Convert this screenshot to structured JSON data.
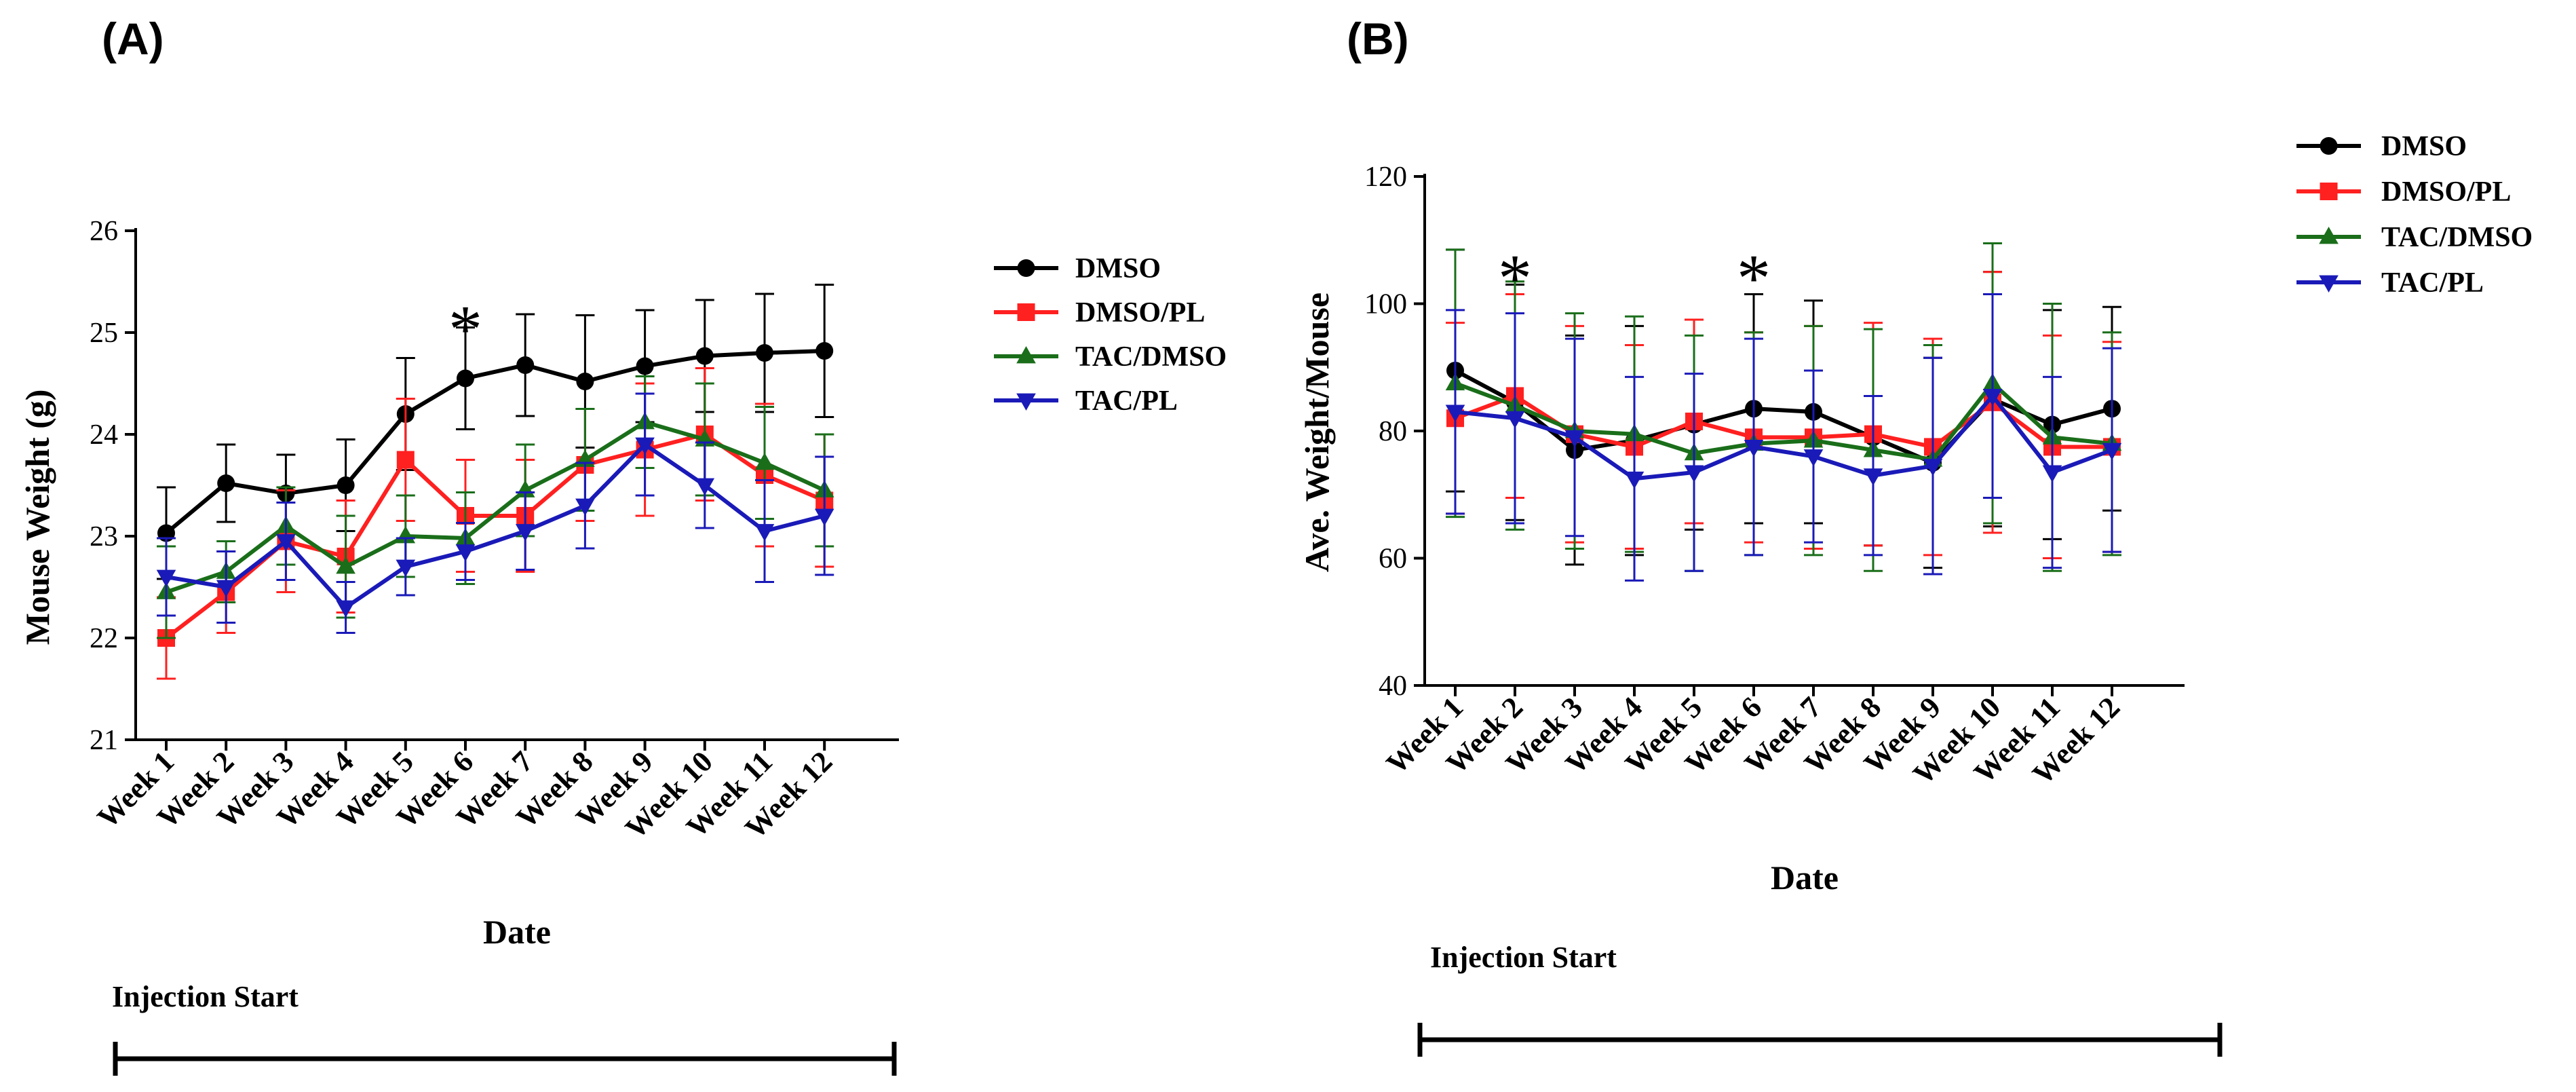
{
  "chart_data": [
    {
      "panel_label": "(A)",
      "type": "line",
      "xlabel": "Date",
      "ylabel": "Mouse Weight (g)",
      "ylim": [
        21,
        26
      ],
      "yticks": [
        "21",
        "22",
        "23",
        "24",
        "25",
        "26"
      ],
      "categories": [
        "Week 1",
        "Week 2",
        "Week 3",
        "Week 4",
        "Week 5",
        "Week 6",
        "Week 7",
        "Week 8",
        "Week 9",
        "Week 10",
        "Week 11",
        "Week 12"
      ],
      "series": [
        {
          "name": "DMSO",
          "color": "#000000",
          "marker": "circle",
          "values": [
            23.03,
            23.52,
            23.42,
            23.5,
            24.2,
            24.55,
            24.68,
            24.52,
            24.67,
            24.77,
            24.8,
            24.82
          ],
          "errors": [
            0.45,
            0.38,
            0.38,
            0.45,
            0.55,
            0.5,
            0.5,
            0.65,
            0.55,
            0.55,
            0.58,
            0.65
          ]
        },
        {
          "name": "DMSO/PL",
          "color": "#ff2020",
          "marker": "square",
          "values": [
            22.0,
            22.45,
            22.95,
            22.8,
            23.75,
            23.2,
            23.2,
            23.7,
            23.85,
            24.0,
            23.6,
            23.35
          ],
          "errors": [
            0.4,
            0.4,
            0.5,
            0.55,
            0.6,
            0.55,
            0.55,
            0.55,
            0.65,
            0.65,
            0.7,
            0.65
          ]
        },
        {
          "name": "TAC/DMSO",
          "color": "#1a6e1a",
          "marker": "triangle-up",
          "values": [
            22.45,
            22.65,
            23.1,
            22.7,
            23.0,
            22.98,
            23.45,
            23.75,
            24.12,
            23.95,
            23.72,
            23.45
          ],
          "errors": [
            0.45,
            0.3,
            0.38,
            0.5,
            0.4,
            0.45,
            0.45,
            0.5,
            0.45,
            0.55,
            0.55,
            0.55
          ]
        },
        {
          "name": "TAC/PL",
          "color": "#1a1ab8",
          "marker": "triangle-down",
          "values": [
            22.6,
            22.5,
            22.95,
            22.3,
            22.7,
            22.85,
            23.05,
            23.3,
            23.9,
            23.5,
            23.05,
            23.2
          ],
          "errors": [
            0.38,
            0.35,
            0.38,
            0.25,
            0.28,
            0.28,
            0.38,
            0.42,
            0.5,
            0.42,
            0.5,
            0.58
          ]
        }
      ],
      "annotations": [
        {
          "text": "*",
          "category": "Week 6"
        }
      ],
      "injection_label": "Injection Start"
    },
    {
      "panel_label": "(B)",
      "type": "line",
      "xlabel": "Date",
      "ylabel": "Ave. Weight/Mouse",
      "ylim": [
        40,
        120
      ],
      "yticks": [
        "40",
        "60",
        "80",
        "100",
        "120"
      ],
      "categories": [
        "Week 1",
        "Week 2",
        "Week 3",
        "Week 4",
        "Week 5",
        "Week 6",
        "Week 7",
        "Week 8",
        "Week 9",
        "Week 10",
        "Week 11",
        "Week 12"
      ],
      "series": [
        {
          "name": "DMSO",
          "color": "#000000",
          "marker": "circle",
          "values": [
            89.5,
            84.5,
            77.0,
            78.5,
            81.0,
            83.5,
            83.0,
            79.0,
            75.0,
            85.0,
            81.0,
            83.5
          ],
          "errors": [
            19.0,
            18.5,
            18.0,
            18.0,
            16.5,
            18.0,
            17.5,
            17.0,
            16.5,
            20.0,
            18.0,
            16.0
          ]
        },
        {
          "name": "DMSO/PL",
          "color": "#ff2020",
          "marker": "square",
          "values": [
            82.0,
            85.5,
            79.5,
            77.5,
            81.5,
            79.0,
            79.0,
            79.5,
            77.5,
            84.5,
            77.5,
            77.5
          ],
          "errors": [
            15.0,
            16.0,
            17.0,
            16.0,
            16.0,
            16.5,
            17.5,
            17.5,
            17.0,
            20.5,
            17.5,
            16.5
          ]
        },
        {
          "name": "TAC/DMSO",
          "color": "#1a6e1a",
          "marker": "triangle-up",
          "values": [
            87.5,
            84.0,
            80.0,
            79.5,
            76.5,
            78.0,
            78.5,
            77.0,
            75.5,
            87.5,
            79.0,
            78.0
          ],
          "errors": [
            21.0,
            19.5,
            18.5,
            18.5,
            18.5,
            17.5,
            18.0,
            19.0,
            18.0,
            22.0,
            21.0,
            17.5
          ]
        },
        {
          "name": "TAC/PL",
          "color": "#1a1ab8",
          "marker": "triangle-down",
          "values": [
            83.0,
            82.0,
            79.0,
            72.5,
            73.5,
            77.5,
            76.0,
            73.0,
            74.5,
            85.5,
            73.5,
            77.0
          ],
          "errors": [
            16.0,
            16.5,
            15.5,
            16.0,
            15.5,
            17.0,
            13.5,
            12.5,
            17.0,
            16.0,
            15.0,
            16.0
          ]
        }
      ],
      "annotations": [
        {
          "text": "*",
          "category": "Week 2"
        },
        {
          "text": "*",
          "category": "Week 6"
        }
      ],
      "injection_label": "Injection Start"
    }
  ]
}
